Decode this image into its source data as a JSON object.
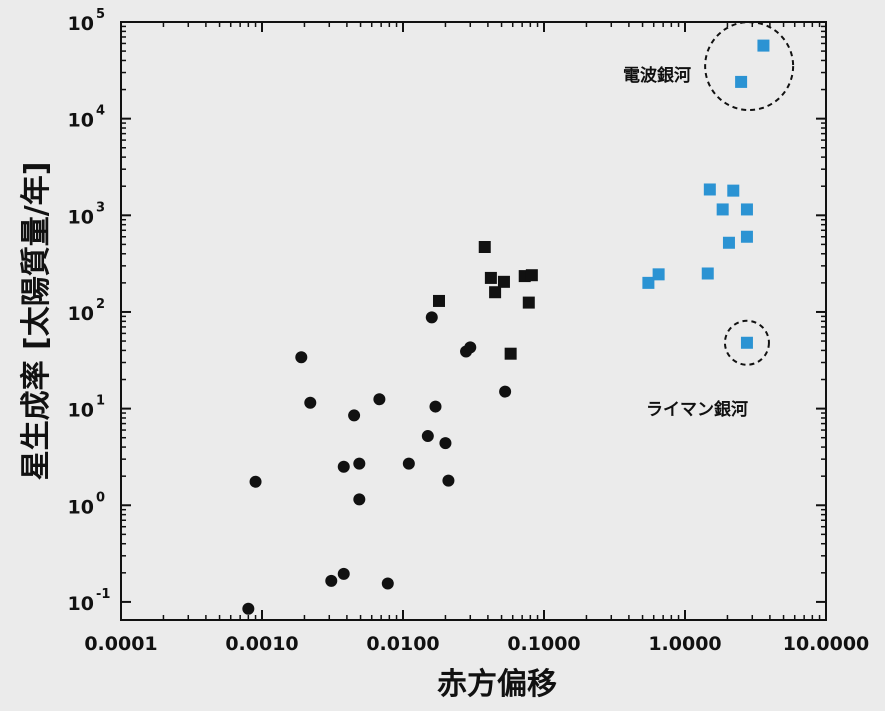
{
  "chart_data": {
    "type": "scatter",
    "xlabel": "赤方偏移",
    "ylabel": "星生成率 [太陽質量/年]",
    "x_scale": "log",
    "y_scale": "log",
    "xlim": [
      0.0001,
      10
    ],
    "ylim": [
      0.065,
      100000
    ],
    "x_ticks": [
      {
        "value": 0.0001,
        "label": "0.0001"
      },
      {
        "value": 0.001,
        "label": "0.0010"
      },
      {
        "value": 0.01,
        "label": "0.0100"
      },
      {
        "value": 0.1,
        "label": "0.1000"
      },
      {
        "value": 1,
        "label": "1.0000"
      },
      {
        "value": 10,
        "label": "10.0000"
      }
    ],
    "y_ticks": [
      {
        "value": 0.1,
        "base": "10",
        "exp": "-1"
      },
      {
        "value": 1,
        "base": "10",
        "exp": "0"
      },
      {
        "value": 10,
        "base": "10",
        "exp": "1"
      },
      {
        "value": 100,
        "base": "10",
        "exp": "2"
      },
      {
        "value": 1000,
        "base": "10",
        "exp": "3"
      },
      {
        "value": 10000,
        "base": "10",
        "exp": "4"
      },
      {
        "value": 100000,
        "base": "10",
        "exp": "5"
      }
    ],
    "grid": false,
    "series": [
      {
        "marker": "circle",
        "color": "#111111",
        "points": [
          [
            0.0008,
            0.085
          ],
          [
            0.0009,
            1.75
          ],
          [
            0.0019,
            34
          ],
          [
            0.0022,
            11.5
          ],
          [
            0.0031,
            0.165
          ],
          [
            0.0038,
            0.195
          ],
          [
            0.0038,
            2.5
          ],
          [
            0.0045,
            8.5
          ],
          [
            0.0049,
            2.7
          ],
          [
            0.0049,
            1.15
          ],
          [
            0.0068,
            12.5
          ],
          [
            0.0078,
            0.155
          ],
          [
            0.011,
            2.7
          ],
          [
            0.015,
            5.2
          ],
          [
            0.016,
            88
          ],
          [
            0.017,
            10.5
          ],
          [
            0.02,
            4.4
          ],
          [
            0.021,
            1.8
          ],
          [
            0.028,
            39
          ],
          [
            0.03,
            43
          ],
          [
            0.053,
            15
          ]
        ]
      },
      {
        "marker": "square",
        "color": "#111111",
        "points": [
          [
            0.018,
            130
          ],
          [
            0.038,
            470
          ],
          [
            0.042,
            225
          ],
          [
            0.045,
            160
          ],
          [
            0.052,
            205
          ],
          [
            0.058,
            37
          ],
          [
            0.073,
            235
          ],
          [
            0.078,
            125
          ],
          [
            0.082,
            240
          ]
        ]
      },
      {
        "marker": "square",
        "color": "#2b93d3",
        "points": [
          [
            0.55,
            200
          ],
          [
            0.65,
            245
          ],
          [
            1.45,
            250
          ],
          [
            1.5,
            1850
          ],
          [
            1.85,
            1150
          ],
          [
            2.05,
            520
          ],
          [
            2.2,
            1800
          ],
          [
            2.5,
            24000
          ],
          [
            2.75,
            1150
          ],
          [
            2.75,
            600
          ],
          [
            2.75,
            48
          ],
          [
            3.6,
            57000
          ]
        ]
      }
    ],
    "annotations": [
      {
        "text": "電波銀河",
        "circle_center": [
          2.85,
          35000
        ]
      },
      {
        "text": "ライマン銀河",
        "circle_center": [
          2.75,
          48
        ]
      }
    ]
  }
}
